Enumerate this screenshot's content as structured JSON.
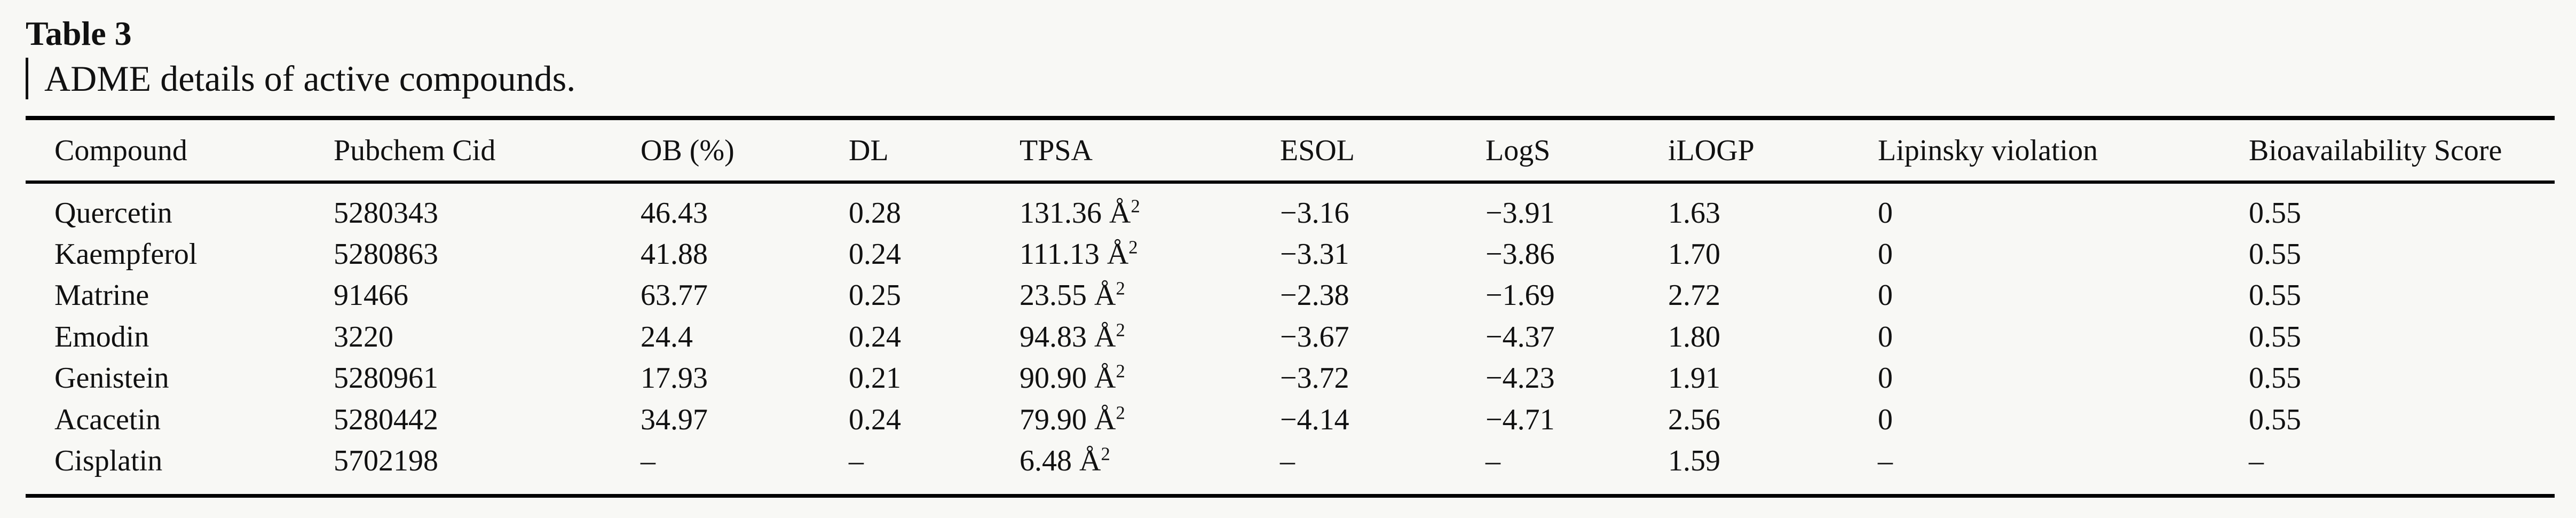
{
  "colors": {
    "background": "#f8f8f5",
    "text": "#111111",
    "rule": "#000000"
  },
  "table": {
    "label": "Table 3",
    "caption": "ADME details of active compounds.",
    "columns": [
      "Compound",
      "Pubchem Cid",
      "OB (%)",
      "DL",
      "TPSA",
      "ESOL",
      "LogS",
      "iLOGP",
      "Lipinsky violation",
      "Bioavailability Score"
    ],
    "rows": [
      {
        "compound": "Quercetin",
        "cid": "5280343",
        "ob": "46.43",
        "dl": "0.28",
        "tpsa": "131.36 Å",
        "tpsa_exp": "2",
        "esol": "−3.16",
        "logs": "−3.91",
        "ilogp": "1.63",
        "lipinsky": "0",
        "bio": "0.55"
      },
      {
        "compound": "Kaempferol",
        "cid": "5280863",
        "ob": "41.88",
        "dl": "0.24",
        "tpsa": "111.13 Å",
        "tpsa_exp": "2",
        "esol": "−3.31",
        "logs": "−3.86",
        "ilogp": "1.70",
        "lipinsky": "0",
        "bio": "0.55"
      },
      {
        "compound": "Matrine",
        "cid": "91466",
        "ob": "63.77",
        "dl": "0.25",
        "tpsa": "23.55 Å",
        "tpsa_exp": "2",
        "esol": "−2.38",
        "logs": "−1.69",
        "ilogp": "2.72",
        "lipinsky": "0",
        "bio": "0.55"
      },
      {
        "compound": "Emodin",
        "cid": "3220",
        "ob": "24.4",
        "dl": "0.24",
        "tpsa": "94.83 Å",
        "tpsa_exp": "2",
        "esol": "−3.67",
        "logs": "−4.37",
        "ilogp": "1.80",
        "lipinsky": "0",
        "bio": "0.55"
      },
      {
        "compound": "Genistein",
        "cid": "5280961",
        "ob": "17.93",
        "dl": "0.21",
        "tpsa": "90.90 Å",
        "tpsa_exp": "2",
        "esol": "−3.72",
        "logs": "−4.23",
        "ilogp": "1.91",
        "lipinsky": "0",
        "bio": "0.55"
      },
      {
        "compound": "Acacetin",
        "cid": "5280442",
        "ob": "34.97",
        "dl": "0.24",
        "tpsa": "79.90 Å",
        "tpsa_exp": "2",
        "esol": "−4.14",
        "logs": "−4.71",
        "ilogp": "2.56",
        "lipinsky": "0",
        "bio": "0.55"
      },
      {
        "compound": "Cisplatin",
        "cid": "5702198",
        "ob": "–",
        "dl": "–",
        "tpsa": "6.48 Å",
        "tpsa_exp": "2",
        "esol": "–",
        "logs": "–",
        "ilogp": "1.59",
        "lipinsky": "–",
        "bio": "–"
      }
    ]
  }
}
